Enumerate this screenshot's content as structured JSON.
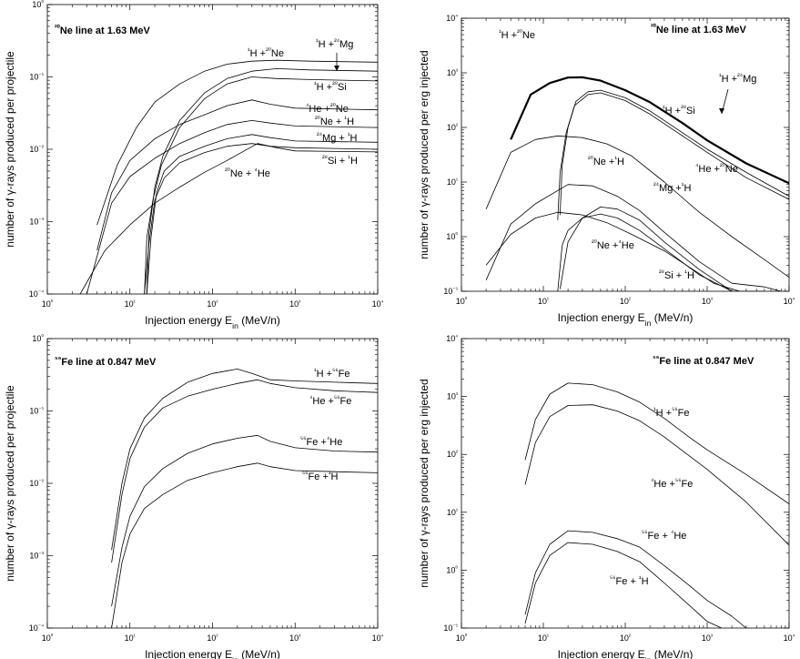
{
  "chart_data": [
    {
      "type": "line",
      "id": "ne-per-projectile",
      "title": "²⁰Ne line at 1.63 MeV",
      "xlabel": "Injection energy E_in (MeV/n)",
      "ylabel": "number of γ-rays produced per projectile",
      "xscale": "log",
      "yscale": "log",
      "xlim": [
        1,
        10000
      ],
      "ylim": [
        0.0001,
        1
      ],
      "xticks": [
        "10⁰",
        "10¹",
        "10²",
        "10³",
        "10⁴"
      ],
      "yticks": [
        "10⁻⁴",
        "10⁻³",
        "10⁻²",
        "10⁻¹",
        "10⁰"
      ],
      "grid": false,
      "series": [
        {
          "name": "¹H +²⁰Ne",
          "x": [
            4,
            7,
            12,
            20,
            40,
            80,
            150,
            300,
            600,
            1500,
            10000
          ],
          "y": [
            0.0009,
            0.006,
            0.02,
            0.045,
            0.08,
            0.12,
            0.15,
            0.165,
            0.17,
            0.165,
            0.16
          ]
        },
        {
          "name": "¹H +²⁴Mg",
          "x": [
            16,
            17,
            20,
            25,
            40,
            80,
            150,
            300,
            600,
            1500,
            10000
          ],
          "y": [
            0.0001,
            0.0007,
            0.003,
            0.008,
            0.025,
            0.06,
            0.095,
            0.12,
            0.13,
            0.125,
            0.12
          ]
        },
        {
          "name": "¹H +²⁸Si",
          "x": [
            15,
            16,
            19,
            24,
            40,
            80,
            150,
            300,
            600,
            1500,
            10000
          ],
          "y": [
            0.0001,
            0.0006,
            0.002,
            0.006,
            0.02,
            0.05,
            0.08,
            0.1,
            0.095,
            0.092,
            0.088
          ]
        },
        {
          "name": "⁴He +²⁰Ne",
          "x": [
            4,
            6,
            10,
            20,
            40,
            80,
            150,
            300,
            500,
            1000,
            10000
          ],
          "y": [
            0.0004,
            0.0025,
            0.007,
            0.014,
            0.022,
            0.03,
            0.04,
            0.048,
            0.042,
            0.037,
            0.035
          ]
        },
        {
          "name": "²⁰Ne + ¹H",
          "x": [
            3,
            6,
            10,
            20,
            40,
            80,
            150,
            300,
            500,
            1000,
            10000
          ],
          "y": [
            0.0001,
            0.0018,
            0.0042,
            0.0075,
            0.012,
            0.017,
            0.022,
            0.025,
            0.023,
            0.021,
            0.02
          ]
        },
        {
          "name": "²⁴Mg + ¹H",
          "x": [
            16,
            18,
            21,
            26,
            40,
            80,
            150,
            300,
            500,
            1000,
            10000
          ],
          "y": [
            0.0001,
            0.0006,
            0.0025,
            0.005,
            0.008,
            0.011,
            0.014,
            0.016,
            0.0145,
            0.013,
            0.0125
          ]
        },
        {
          "name": "²⁸Si + ¹H",
          "x": [
            15,
            17,
            20,
            26,
            40,
            80,
            150,
            300,
            500,
            1000,
            10000
          ],
          "y": [
            0.0001,
            0.0005,
            0.002,
            0.004,
            0.0065,
            0.009,
            0.011,
            0.012,
            0.011,
            0.0105,
            0.01
          ]
        },
        {
          "name": "²⁰Ne + ⁴He",
          "x": [
            2.5,
            5,
            10,
            20,
            40,
            80,
            150,
            350,
            600,
            1000,
            10000
          ],
          "y": [
            0.0001,
            0.0004,
            0.0009,
            0.0018,
            0.003,
            0.0048,
            0.007,
            0.012,
            0.0105,
            0.0095,
            0.0092
          ]
        }
      ],
      "labels": [
        "¹H +²⁰Ne",
        "¹H +²⁴Mg",
        "¹H +²⁸Si",
        "⁴He +²⁰Ne",
        "²⁰Ne + ¹H",
        "²⁴Mg + ¹H",
        "²⁸Si + ¹H",
        "²⁰Ne + ⁴He"
      ]
    },
    {
      "type": "line",
      "id": "ne-per-erg",
      "title": "²⁰Ne line at 1.63 MeV",
      "xlabel": "Injection energy E_in (MeV/n)",
      "ylabel": "number of γ-rays produced per erg injected",
      "xscale": "log",
      "yscale": "log",
      "xlim": [
        1,
        10000
      ],
      "ylim": [
        0.1,
        10000
      ],
      "xticks": [
        "10⁰",
        "10¹",
        "10²",
        "10³",
        "10⁴"
      ],
      "yticks": [
        "10⁻¹",
        "10⁰",
        "10¹",
        "10²",
        "10³",
        "10⁴"
      ],
      "grid": false,
      "series": [
        {
          "name": "¹H +²⁰Ne",
          "bold": true,
          "x": [
            4,
            7,
            12,
            20,
            30,
            50,
            100,
            200,
            500,
            1000,
            3000,
            10000
          ],
          "y": [
            60,
            400,
            650,
            820,
            830,
            720,
            480,
            290,
            120,
            58,
            22,
            9.5
          ]
        },
        {
          "name": "¹H +²⁴Mg",
          "x": [
            16,
            17,
            20,
            25,
            35,
            50,
            100,
            200,
            500,
            1000,
            3000,
            10000
          ],
          "y": [
            2.5,
            20,
            100,
            300,
            450,
            480,
            350,
            200,
            80,
            40,
            15,
            5.5
          ]
        },
        {
          "name": "¹H +²⁸Si",
          "x": [
            15,
            16,
            19,
            24,
            35,
            50,
            100,
            200,
            500,
            1000,
            3000,
            10000
          ],
          "y": [
            2,
            15,
            80,
            250,
            400,
            430,
            310,
            175,
            70,
            35,
            12,
            4.8
          ]
        },
        {
          "name": "⁴He +²⁰Ne",
          "x": [
            2,
            4,
            8,
            15,
            30,
            60,
            120,
            300,
            800,
            2000,
            5000,
            10000
          ],
          "y": [
            3.2,
            35,
            60,
            70,
            65,
            50,
            30,
            10,
            2.8,
            1,
            0.38,
            0.18
          ]
        },
        {
          "name": "²⁰Ne +¹H",
          "x": [
            2,
            4,
            8,
            20,
            40,
            80,
            150,
            300,
            800,
            2000,
            5000,
            8000
          ],
          "y": [
            0.16,
            1.7,
            4,
            9,
            8.5,
            5.5,
            3,
            1.2,
            0.35,
            0.14,
            0.12,
            0.1
          ]
        },
        {
          "name": "²⁴Mg +¹H",
          "x": [
            16,
            20,
            30,
            50,
            80,
            150,
            300,
            800,
            2000,
            5000
          ],
          "y": [
            0.11,
            0.8,
            2.2,
            3.5,
            3.2,
            2,
            0.8,
            0.25,
            0.1,
            0.1
          ]
        },
        {
          "name": "²⁰Ne +⁴He",
          "x": [
            2,
            4,
            8,
            15,
            30,
            60,
            120,
            300,
            600,
            1200,
            2500
          ],
          "y": [
            0.3,
            1.1,
            2.2,
            2.8,
            2.5,
            1.8,
            1.1,
            0.55,
            0.28,
            0.14,
            0.1
          ]
        },
        {
          "name": "²⁸Si + ¹H",
          "x": [
            15,
            17,
            20,
            30,
            50,
            80,
            150,
            300,
            800,
            2000,
            5000
          ],
          "y": [
            0.1,
            0.7,
            1.3,
            2.2,
            2.6,
            2.2,
            1.3,
            0.6,
            0.2,
            0.1,
            0.1
          ]
        }
      ],
      "labels": [
        "¹H +²⁰Ne",
        "¹H +²⁴Mg",
        "¹H +²⁸Si",
        "⁴He +²⁰Ne",
        "²⁰Ne +¹H",
        "²⁴Mg +¹H",
        "²⁰Ne +⁴He",
        "²⁸Si + ¹H"
      ]
    },
    {
      "type": "line",
      "id": "fe-per-projectile",
      "title": "⁵⁶Fe line at 0.847 MeV",
      "xlabel": "Injection energy E_in (MeV/n)",
      "ylabel": "number of γ-rays produced per projectile",
      "xscale": "log",
      "yscale": "log",
      "xlim": [
        1,
        10000
      ],
      "ylim": [
        0.0001,
        1
      ],
      "xticks": [
        "10⁰",
        "10¹",
        "10²",
        "10³",
        "10⁴"
      ],
      "yticks": [
        "10⁻⁴",
        "10⁻³",
        "10⁻²",
        "10⁻¹",
        "10⁰"
      ],
      "grid": false,
      "series": [
        {
          "name": "¹H +⁵⁶Fe",
          "x": [
            6,
            8,
            10,
            15,
            25,
            50,
            100,
            200,
            300,
            500,
            1000,
            3000,
            10000
          ],
          "y": [
            0.0012,
            0.01,
            0.03,
            0.08,
            0.15,
            0.25,
            0.33,
            0.38,
            0.33,
            0.27,
            0.26,
            0.25,
            0.24
          ]
        },
        {
          "name": "⁴He +⁵⁶Fe",
          "x": [
            6,
            8,
            10,
            15,
            25,
            50,
            100,
            200,
            350,
            500,
            1000,
            3000,
            10000
          ],
          "y": [
            0.0008,
            0.007,
            0.022,
            0.06,
            0.11,
            0.16,
            0.2,
            0.24,
            0.27,
            0.24,
            0.21,
            0.19,
            0.18
          ]
        },
        {
          "name": "⁵⁶Fe +⁴He",
          "x": [
            6,
            8,
            10,
            15,
            25,
            50,
            100,
            200,
            350,
            500,
            1000,
            3000,
            10000
          ],
          "y": [
            0.0002,
            0.0013,
            0.0035,
            0.009,
            0.016,
            0.026,
            0.035,
            0.042,
            0.046,
            0.038,
            0.031,
            0.028,
            0.027
          ]
        },
        {
          "name": "⁵⁶Fe +¹H",
          "x": [
            6,
            8,
            10,
            15,
            25,
            50,
            100,
            200,
            350,
            500,
            1000,
            3000,
            10000
          ],
          "y": [
            0.0001,
            0.0008,
            0.002,
            0.0045,
            0.007,
            0.011,
            0.014,
            0.017,
            0.019,
            0.017,
            0.015,
            0.0145,
            0.014
          ]
        }
      ],
      "labels": [
        "¹H +⁵⁶Fe",
        "⁴He +⁵⁶Fe",
        "⁵⁶Fe +⁴He",
        "⁵⁶Fe +¹H"
      ]
    },
    {
      "type": "line",
      "id": "fe-per-erg",
      "title": "⁵⁶Fe line at 0.847 MeV",
      "xlabel": "Injection energy E_in (MeV/n)",
      "ylabel": "number of γ-rays produced per erg injected",
      "xscale": "log",
      "yscale": "log",
      "xlim": [
        1,
        10000
      ],
      "ylim": [
        0.1,
        10000
      ],
      "xticks": [
        "10⁰",
        "10¹",
        "10²",
        "10³",
        "10⁴"
      ],
      "yticks": [
        "10⁻¹",
        "10⁰",
        "10¹",
        "10²",
        "10³",
        "10⁴"
      ],
      "grid": false,
      "series": [
        {
          "name": "¹H +⁵⁶Fe",
          "x": [
            6,
            8,
            12,
            20,
            40,
            80,
            150,
            300,
            600,
            1000,
            3000,
            10000
          ],
          "y": [
            80,
            400,
            1100,
            1700,
            1600,
            1200,
            800,
            420,
            200,
            120,
            45,
            14
          ]
        },
        {
          "name": "⁴He +⁵⁶Fe",
          "x": [
            6,
            8,
            12,
            20,
            40,
            80,
            150,
            300,
            600,
            1000,
            3000,
            10000
          ],
          "y": [
            30,
            160,
            450,
            700,
            720,
            560,
            380,
            200,
            95,
            55,
            15,
            2.7
          ]
        },
        {
          "name": "⁵⁶Fe + ⁴He",
          "x": [
            6,
            8,
            12,
            20,
            40,
            80,
            150,
            300,
            600,
            1000,
            2000,
            3000
          ],
          "y": [
            0.17,
            0.9,
            2.8,
            4.8,
            4.5,
            3.5,
            2.5,
            1.2,
            0.55,
            0.3,
            0.16,
            0.1
          ]
        },
        {
          "name": "⁵⁶Fe + ¹H",
          "x": [
            6,
            8,
            12,
            20,
            40,
            80,
            150,
            300,
            600,
            1000,
            1500
          ],
          "y": [
            0.12,
            0.6,
            1.8,
            3,
            2.8,
            2.1,
            1.4,
            0.6,
            0.25,
            0.13,
            0.1
          ]
        }
      ],
      "labels": [
        "¹H +⁵⁶Fe",
        "⁴He +⁵⁶Fe",
        "⁵⁶Fe + ⁴He",
        "⁵⁶Fe + ¹H"
      ]
    }
  ]
}
